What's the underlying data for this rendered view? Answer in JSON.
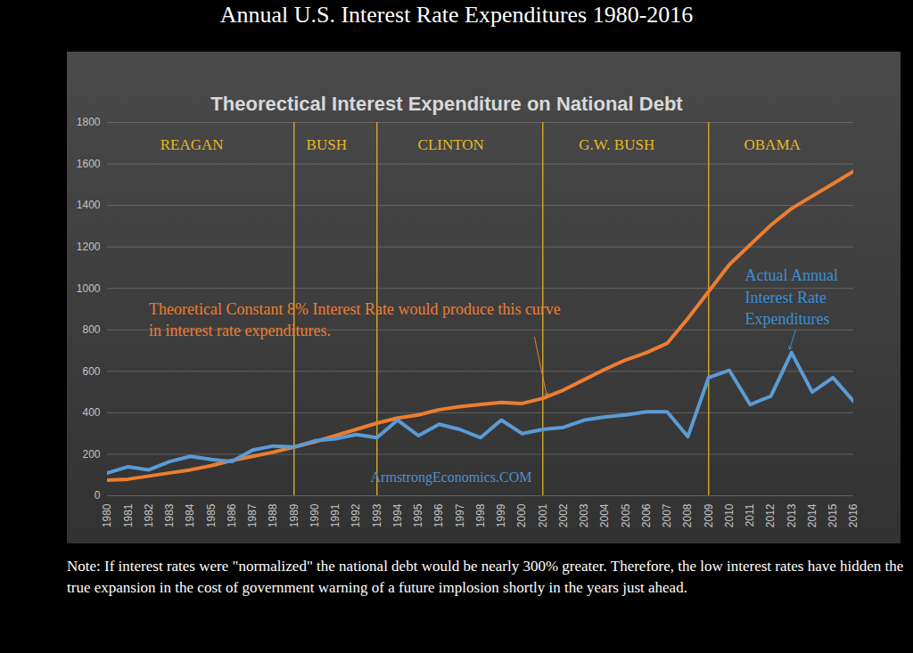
{
  "chart_data": {
    "type": "line",
    "title": "Annual U.S. Interest Rate Expenditures 1980-2016",
    "subtitle": "Theorectical Interest Expenditure on National Debt",
    "x": [
      1980,
      1981,
      1982,
      1983,
      1984,
      1985,
      1986,
      1987,
      1988,
      1989,
      1990,
      1991,
      1992,
      1993,
      1994,
      1995,
      1996,
      1997,
      1998,
      1999,
      2000,
      2001,
      2002,
      2003,
      2004,
      2005,
      2006,
      2007,
      2008,
      2009,
      2010,
      2011,
      2012,
      2013,
      2014,
      2015,
      2016
    ],
    "series": [
      {
        "color": "#ed7d31",
        "values": [
          75,
          80,
          95,
          110,
          125,
          145,
          170,
          190,
          210,
          235,
          260,
          290,
          320,
          350,
          375,
          390,
          415,
          430,
          440,
          450,
          445,
          470,
          510,
          560,
          610,
          655,
          690,
          735,
          855,
          985,
          1115,
          1210,
          1305,
          1385,
          1445,
          1505,
          1565
        ]
      },
      {
        "color": "#5b9bd5",
        "values": [
          110,
          140,
          125,
          165,
          190,
          175,
          165,
          220,
          240,
          235,
          265,
          275,
          295,
          280,
          365,
          290,
          345,
          320,
          280,
          365,
          300,
          320,
          330,
          365,
          380,
          390,
          405,
          405,
          285,
          570,
          605,
          440,
          480,
          690,
          500,
          570,
          455
        ]
      }
    ],
    "xlim": [
      1980,
      2016
    ],
    "xticks": [
      1980,
      1981,
      1982,
      1983,
      1984,
      1985,
      1986,
      1987,
      1988,
      1989,
      1990,
      1991,
      1992,
      1993,
      1994,
      1995,
      1996,
      1997,
      1998,
      1999,
      2000,
      2001,
      2002,
      2003,
      2004,
      2005,
      2006,
      2007,
      2008,
      2009,
      2010,
      2011,
      2012,
      2013,
      2014,
      2015,
      2016
    ],
    "ylim": [
      0,
      1800
    ],
    "yticks": [
      0,
      200,
      400,
      600,
      800,
      1000,
      1200,
      1400,
      1600,
      1800
    ],
    "grid": true,
    "eras": [
      {
        "label": "REAGAN",
        "start": 1980,
        "end": 1989
      },
      {
        "label": "BUSH",
        "start": 1989,
        "end": 1993
      },
      {
        "label": "CLINTON",
        "start": 1993,
        "end": 2001
      },
      {
        "label": "G.W. BUSH",
        "start": 2001,
        "end": 2009
      },
      {
        "label": "OBAMA",
        "start": 2009,
        "end": 2016
      }
    ],
    "annotations": [
      {
        "text": "Theoretical Constant 8% Interest Rate would produce this curve\nin interest rate expenditures.",
        "x": 1982,
        "y": 949,
        "arrow_from": [
          2000.6,
          765
        ],
        "arrow_to": [
          2001.2,
          480
        ],
        "color": "#ed7d31"
      },
      {
        "text": "Actual Annual\nInterest Rate\nExpenditures",
        "x": 2010.75,
        "y": 1110,
        "arrow_from": [
          2013.2,
          800
        ],
        "arrow_to": [
          2012.9,
          705
        ],
        "color": "#3a8fd6"
      }
    ],
    "watermark": "ArmstrongEconomics.COM",
    "note": "Note: If interest rates were \"normalized\" the national debt would be nearly 300% greater. Therefore, the low interest rates have hidden the true expansion in the cost of government warning of a future implosion shortly in the years just ahead."
  }
}
